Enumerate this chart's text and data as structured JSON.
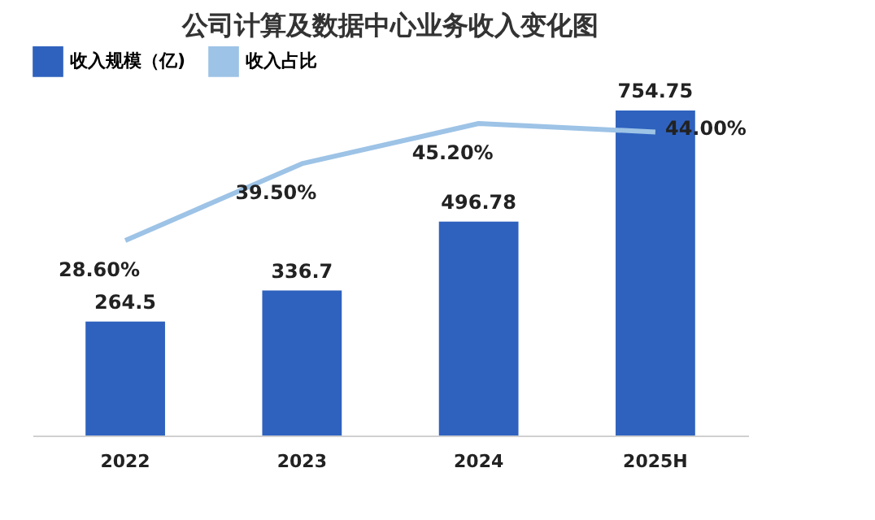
{
  "chart_data": {
    "type": "bar",
    "title": "公司计算及数据中心业务收入变化图",
    "categories": [
      "2022",
      "2023",
      "2024",
      "2025H"
    ],
    "series": [
      {
        "name": "收入规模（亿)",
        "color": "#2f62be",
        "values": [
          264.5,
          336.7,
          496.78,
          754.75
        ],
        "value_labels": [
          "264.5",
          "336.7",
          "496.78",
          "754.75"
        ]
      },
      {
        "name": "收入占比",
        "type": "line",
        "axis": "y2",
        "color": "#9dc3e6",
        "values": [
          28.6,
          39.5,
          45.2,
          44.0
        ],
        "value_labels": [
          "28.60%",
          "39.50%",
          "45.20%",
          "44.00%"
        ]
      }
    ],
    "legend": "top",
    "grid": false,
    "tick_labels": "x"
  }
}
